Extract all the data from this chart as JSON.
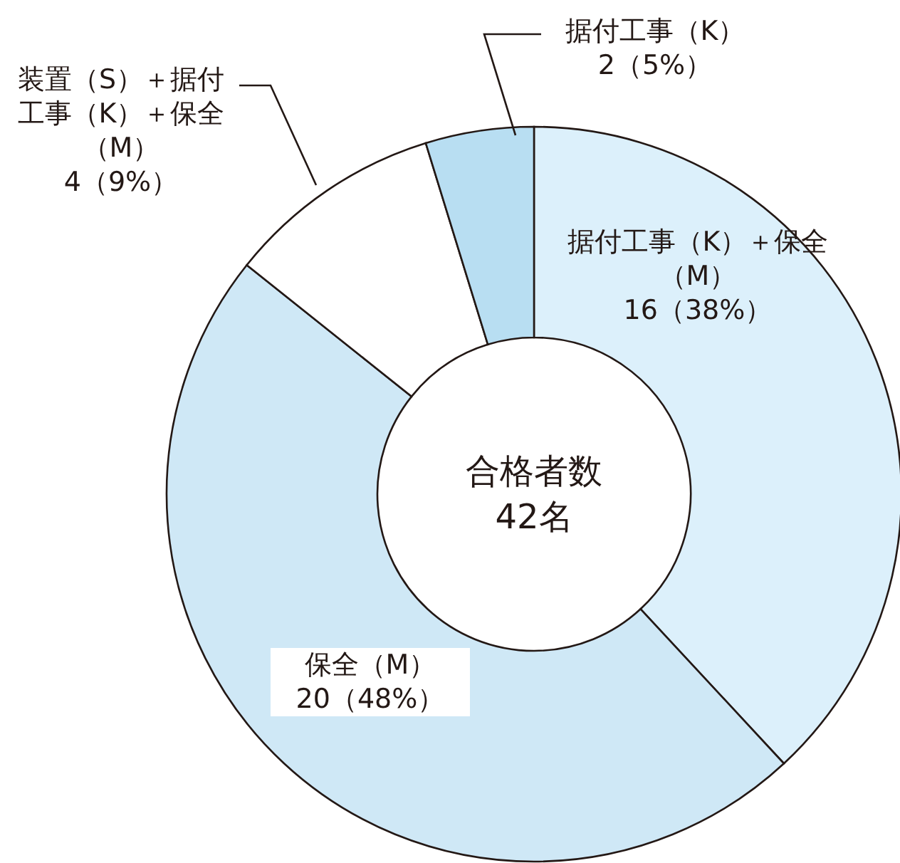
{
  "chart_data": {
    "type": "donut",
    "title": "合格者数",
    "annotations": [
      "42名"
    ],
    "categories": [
      "据付工事（K）＋保全（M）",
      "保全（M）",
      "装置（S）＋据付工事（K）＋保全（M）",
      "据付工事（K）"
    ],
    "values": [
      16,
      20,
      4,
      2
    ],
    "value_labels": [
      "16（38%）",
      "20（48%）",
      "4（9%）",
      "2（5%）"
    ],
    "colors": [
      "#dcf0fb",
      "#cfe8f6",
      "#ffffff",
      "#b8def2"
    ]
  }
}
